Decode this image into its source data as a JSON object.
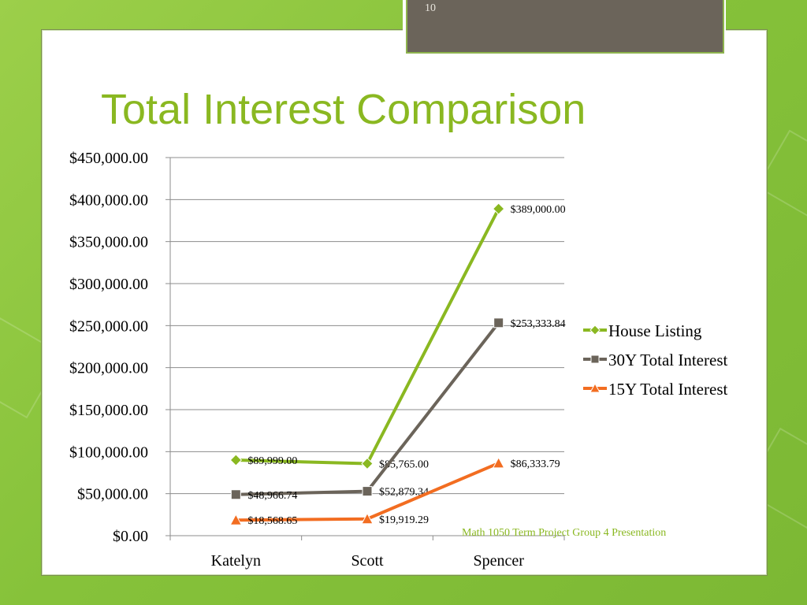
{
  "slide": {
    "page_number": "10",
    "title": "Total Interest Comparison",
    "footer": "Math 1050 Term Project Group 4 Presentation"
  },
  "colors": {
    "title": "#8ab821",
    "house_listing": "#8ab821",
    "y30_total_interest": "#6b645a",
    "y15_total_interest": "#f26d21"
  },
  "chart_data": {
    "type": "line",
    "categories": [
      "Katelyn",
      "Scott",
      "Spencer"
    ],
    "ylim": [
      0,
      450000
    ],
    "ytick_labels": [
      "$0.00",
      "$50,000.00",
      "$100,000.00",
      "$150,000.00",
      "$200,000.00",
      "$250,000.00",
      "$300,000.00",
      "$350,000.00",
      "$400,000.00",
      "$450,000.00"
    ],
    "grid": true,
    "legend_position": "right",
    "series": [
      {
        "name": "House Listing",
        "marker": "diamond",
        "color": "#8ab821",
        "values": [
          89999.0,
          85765.0,
          389000.0
        ],
        "labels": [
          "$89,999.00",
          "$85,765.00",
          "$389,000.00"
        ]
      },
      {
        "name": "30Y Total Interest",
        "marker": "square",
        "color": "#6b645a",
        "values": [
          48966.74,
          52879.34,
          253333.84
        ],
        "labels": [
          "$48,966.74",
          "$52,879.34",
          "$253,333.84"
        ]
      },
      {
        "name": "15Y Total Interest",
        "marker": "triangle",
        "color": "#f26d21",
        "values": [
          18568.65,
          19919.29,
          86333.79
        ],
        "labels": [
          "$18,568.65",
          "$19,919.29",
          "$86,333.79"
        ]
      }
    ]
  }
}
